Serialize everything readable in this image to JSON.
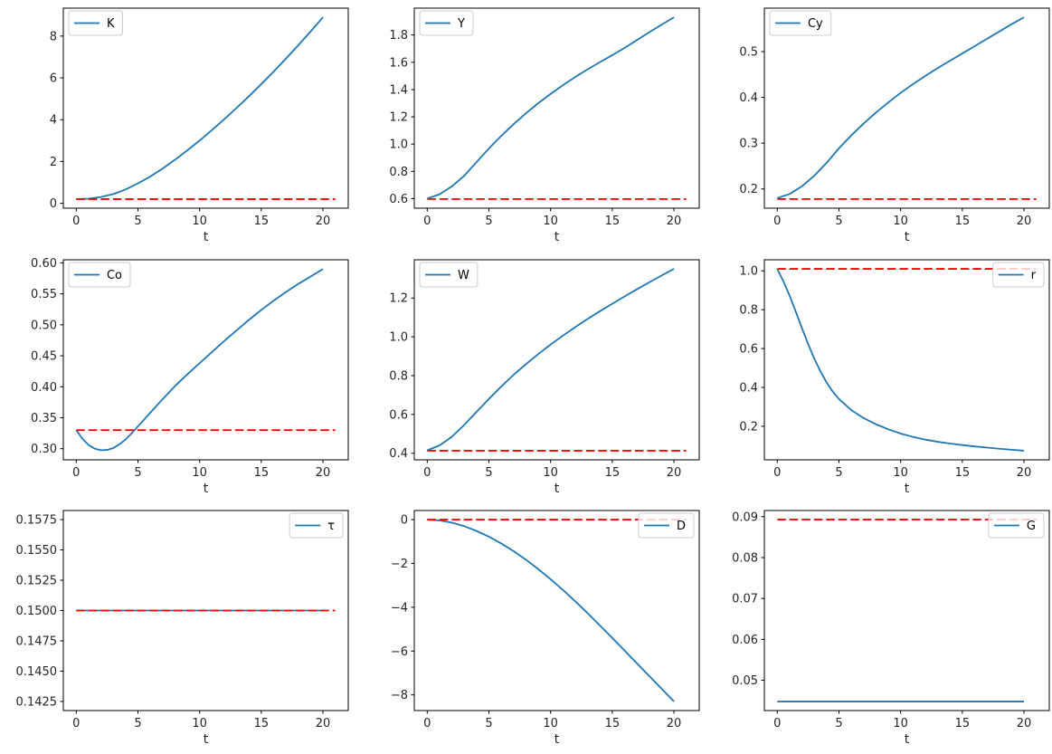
{
  "figure": {
    "background": "#ffffff",
    "description": "3x3 grid of time-path line plots, each variable plotted against t with a red dashed steady-state reference line"
  },
  "colors": {
    "series": "#1f77b4",
    "reference": "#ff0000",
    "axes": "#000000",
    "tick_text": "#262626",
    "legend_border": "#cccccc",
    "legend_fill": "#ffffff"
  },
  "chart_data": [
    {
      "id": "K",
      "type": "line",
      "xlabel": "t",
      "legend": {
        "label": "K",
        "loc": "upper-left"
      },
      "xlim": [
        -1.05,
        22.05
      ],
      "ylim": [
        -0.235,
        9.335
      ],
      "xticks": {
        "values": [
          0,
          5,
          10,
          15,
          20
        ],
        "labels": [
          "0",
          "5",
          "10",
          "15",
          "20"
        ]
      },
      "yticks": {
        "values": [
          0,
          2,
          4,
          6,
          8
        ],
        "labels": [
          "0",
          "2",
          "4",
          "6",
          "8"
        ]
      },
      "series": [
        {
          "name": "K",
          "color_key": "series",
          "style": "solid",
          "x": [
            0,
            1,
            2,
            3,
            4,
            5,
            6,
            7,
            8,
            9,
            10,
            11,
            12,
            13,
            14,
            15,
            16,
            17,
            18,
            19,
            20
          ],
          "y": [
            0.2,
            0.22,
            0.3,
            0.44,
            0.66,
            0.95,
            1.28,
            1.66,
            2.08,
            2.53,
            3.0,
            3.5,
            4.02,
            4.56,
            5.12,
            5.7,
            6.3,
            6.92,
            7.56,
            8.22,
            8.9
          ]
        },
        {
          "name": "steady_state",
          "color_key": "reference",
          "style": "dashed",
          "x": [
            0,
            21
          ],
          "y": [
            0.2,
            0.2
          ]
        }
      ]
    },
    {
      "id": "Y",
      "type": "line",
      "xlabel": "t",
      "legend": {
        "label": "Y",
        "loc": "upper-left"
      },
      "xlim": [
        -1.05,
        22.05
      ],
      "ylim": [
        0.53,
        1.997
      ],
      "xticks": {
        "values": [
          0,
          5,
          10,
          15,
          20
        ],
        "labels": [
          "0",
          "5",
          "10",
          "15",
          "20"
        ]
      },
      "yticks": {
        "values": [
          0.6,
          0.8,
          1.0,
          1.2,
          1.4,
          1.6,
          1.8
        ],
        "labels": [
          "0.6",
          "0.8",
          "1.0",
          "1.2",
          "1.4",
          "1.6",
          "1.8"
        ]
      },
      "series": [
        {
          "name": "Y",
          "color_key": "series",
          "style": "solid",
          "x": [
            0,
            1,
            2,
            3,
            4,
            5,
            6,
            7,
            8,
            9,
            10,
            11,
            12,
            13,
            14,
            15,
            16,
            17,
            18,
            19,
            20
          ],
          "y": [
            0.6,
            0.632,
            0.69,
            0.768,
            0.868,
            0.968,
            1.06,
            1.146,
            1.226,
            1.3,
            1.368,
            1.432,
            1.492,
            1.548,
            1.601,
            1.652,
            1.706,
            1.763,
            1.82,
            1.876,
            1.93
          ]
        },
        {
          "name": "steady_state",
          "color_key": "reference",
          "style": "dashed",
          "x": [
            0,
            21
          ],
          "y": [
            0.597,
            0.597
          ]
        }
      ]
    },
    {
      "id": "Cy",
      "type": "line",
      "xlabel": "t",
      "legend": {
        "label": "Cy",
        "loc": "upper-left"
      },
      "xlim": [
        -1.05,
        22.05
      ],
      "ylim": [
        0.158,
        0.595
      ],
      "xticks": {
        "values": [
          0,
          5,
          10,
          15,
          20
        ],
        "labels": [
          "0",
          "5",
          "10",
          "15",
          "20"
        ]
      },
      "yticks": {
        "values": [
          0.2,
          0.3,
          0.4,
          0.5
        ],
        "labels": [
          "0.2",
          "0.3",
          "0.4",
          "0.5"
        ]
      },
      "series": [
        {
          "name": "Cy",
          "color_key": "series",
          "style": "solid",
          "x": [
            0,
            1,
            2,
            3,
            4,
            5,
            6,
            7,
            8,
            9,
            10,
            11,
            12,
            13,
            14,
            15,
            16,
            17,
            18,
            19,
            20
          ],
          "y": [
            0.18,
            0.189,
            0.206,
            0.229,
            0.257,
            0.289,
            0.317,
            0.343,
            0.367,
            0.389,
            0.41,
            0.429,
            0.447,
            0.464,
            0.48,
            0.496,
            0.512,
            0.528,
            0.544,
            0.56,
            0.575
          ]
        },
        {
          "name": "steady_state",
          "color_key": "reference",
          "style": "dashed",
          "x": [
            0,
            21
          ],
          "y": [
            0.178,
            0.178
          ]
        }
      ]
    },
    {
      "id": "Co",
      "type": "line",
      "xlabel": "t",
      "legend": {
        "label": "Co",
        "loc": "upper-left"
      },
      "xlim": [
        -1.05,
        22.05
      ],
      "ylim": [
        0.282,
        0.605
      ],
      "xticks": {
        "values": [
          0,
          5,
          10,
          15,
          20
        ],
        "labels": [
          "0",
          "5",
          "10",
          "15",
          "20"
        ]
      },
      "yticks": {
        "values": [
          0.3,
          0.35,
          0.4,
          0.45,
          0.5,
          0.55,
          0.6
        ],
        "labels": [
          "0.30",
          "0.35",
          "0.40",
          "0.45",
          "0.50",
          "0.55",
          "0.60"
        ]
      },
      "series": [
        {
          "name": "Co",
          "color_key": "series",
          "style": "solid",
          "x": [
            0,
            0.5,
            1,
            1.5,
            2,
            2.5,
            3,
            3.5,
            4,
            4.5,
            5,
            6,
            7,
            8,
            9,
            10,
            11,
            12,
            13,
            14,
            15,
            16,
            17,
            18,
            19,
            20
          ],
          "y": [
            0.33,
            0.316,
            0.306,
            0.3,
            0.2975,
            0.298,
            0.301,
            0.307,
            0.315,
            0.325,
            0.336,
            0.358,
            0.38,
            0.401,
            0.42,
            0.438,
            0.456,
            0.474,
            0.491,
            0.508,
            0.524,
            0.539,
            0.553,
            0.566,
            0.578,
            0.59
          ]
        },
        {
          "name": "steady_state",
          "color_key": "reference",
          "style": "dashed",
          "x": [
            0,
            21
          ],
          "y": [
            0.33,
            0.33
          ]
        }
      ]
    },
    {
      "id": "W",
      "type": "line",
      "xlabel": "t",
      "legend": {
        "label": "W",
        "loc": "upper-left"
      },
      "xlim": [
        -1.05,
        22.05
      ],
      "ylim": [
        0.366,
        1.397
      ],
      "xticks": {
        "values": [
          0,
          5,
          10,
          15,
          20
        ],
        "labels": [
          "0",
          "5",
          "10",
          "15",
          "20"
        ]
      },
      "yticks": {
        "values": [
          0.4,
          0.6,
          0.8,
          1.0,
          1.2
        ],
        "labels": [
          "0.4",
          "0.6",
          "0.8",
          "1.0",
          "1.2"
        ]
      },
      "series": [
        {
          "name": "W",
          "color_key": "series",
          "style": "solid",
          "x": [
            0,
            1,
            2,
            3,
            4,
            5,
            6,
            7,
            8,
            9,
            10,
            11,
            12,
            13,
            14,
            15,
            16,
            17,
            18,
            19,
            20
          ],
          "y": [
            0.415,
            0.44,
            0.485,
            0.546,
            0.613,
            0.68,
            0.744,
            0.804,
            0.859,
            0.911,
            0.96,
            1.006,
            1.05,
            1.092,
            1.132,
            1.17,
            1.208,
            1.245,
            1.281,
            1.316,
            1.35
          ]
        },
        {
          "name": "steady_state",
          "color_key": "reference",
          "style": "dashed",
          "x": [
            0,
            21
          ],
          "y": [
            0.413,
            0.413
          ]
        }
      ]
    },
    {
      "id": "r",
      "type": "line",
      "xlabel": "t",
      "legend": {
        "label": "r",
        "loc": "upper-right"
      },
      "xlim": [
        -1.05,
        22.05
      ],
      "ylim": [
        0.027,
        1.057
      ],
      "xticks": {
        "values": [
          0,
          5,
          10,
          15,
          20
        ],
        "labels": [
          "0",
          "5",
          "10",
          "15",
          "20"
        ]
      },
      "yticks": {
        "values": [
          0.2,
          0.4,
          0.6,
          0.8,
          1.0
        ],
        "labels": [
          "0.2",
          "0.4",
          "0.6",
          "0.8",
          "1.0"
        ]
      },
      "series": [
        {
          "name": "r",
          "color_key": "series",
          "style": "solid",
          "x": [
            0,
            0.5,
            1,
            1.5,
            2,
            2.5,
            3,
            3.5,
            4,
            4.5,
            5,
            6,
            7,
            8,
            9,
            10,
            11,
            12,
            13,
            14,
            15,
            16,
            17,
            18,
            19,
            20
          ],
          "y": [
            1.01,
            0.945,
            0.872,
            0.79,
            0.705,
            0.623,
            0.548,
            0.482,
            0.425,
            0.378,
            0.34,
            0.283,
            0.242,
            0.21,
            0.184,
            0.162,
            0.145,
            0.131,
            0.12,
            0.111,
            0.103,
            0.096,
            0.09,
            0.084,
            0.079,
            0.074
          ]
        },
        {
          "name": "steady_state",
          "color_key": "reference",
          "style": "dashed",
          "x": [
            0,
            21
          ],
          "y": [
            1.01,
            1.01
          ]
        }
      ]
    },
    {
      "id": "tau",
      "type": "line",
      "xlabel": "t",
      "legend": {
        "label": "τ",
        "loc": "upper-right"
      },
      "xlim": [
        -1.05,
        22.05
      ],
      "ylim": [
        0.14175,
        0.15825
      ],
      "xticks": {
        "values": [
          0,
          5,
          10,
          15,
          20
        ],
        "labels": [
          "0",
          "5",
          "10",
          "15",
          "20"
        ]
      },
      "yticks": {
        "values": [
          0.1425,
          0.145,
          0.1475,
          0.15,
          0.1525,
          0.155,
          0.1575
        ],
        "labels": [
          "0.1425",
          "0.1450",
          "0.1475",
          "0.1500",
          "0.1525",
          "0.1550",
          "0.1575"
        ]
      },
      "series": [
        {
          "name": "tau",
          "color_key": "series",
          "style": "solid",
          "x": [
            0,
            20
          ],
          "y": [
            0.15,
            0.15
          ]
        },
        {
          "name": "steady_state",
          "color_key": "reference",
          "style": "dashed",
          "x": [
            0,
            21
          ],
          "y": [
            0.15,
            0.15
          ]
        }
      ]
    },
    {
      "id": "D",
      "type": "line",
      "xlabel": "t",
      "legend": {
        "label": "D",
        "loc": "upper-right"
      },
      "xlim": [
        -1.05,
        22.05
      ],
      "ylim": [
        -8.715,
        0.415
      ],
      "xticks": {
        "values": [
          0,
          5,
          10,
          15,
          20
        ],
        "labels": [
          "0",
          "5",
          "10",
          "15",
          "20"
        ]
      },
      "yticks": {
        "values": [
          0,
          -2,
          -4,
          -6,
          -8
        ],
        "labels": [
          "0",
          "−2",
          "−4",
          "−6",
          "−8"
        ]
      },
      "series": [
        {
          "name": "D",
          "color_key": "series",
          "style": "solid",
          "x": [
            0,
            1,
            2,
            3,
            4,
            5,
            6,
            7,
            8,
            9,
            10,
            11,
            12,
            13,
            14,
            15,
            16,
            17,
            18,
            19,
            20
          ],
          "y": [
            0.0,
            -0.04,
            -0.14,
            -0.3,
            -0.52,
            -0.78,
            -1.09,
            -1.44,
            -1.83,
            -2.26,
            -2.72,
            -3.21,
            -3.73,
            -4.27,
            -4.83,
            -5.4,
            -5.98,
            -6.56,
            -7.14,
            -7.72,
            -8.3
          ]
        },
        {
          "name": "steady_state",
          "color_key": "reference",
          "style": "dashed",
          "x": [
            0,
            21
          ],
          "y": [
            0.0,
            0.0
          ]
        }
      ]
    },
    {
      "id": "G",
      "type": "line",
      "xlabel": "t",
      "legend": {
        "label": "G",
        "loc": "upper-right"
      },
      "xlim": [
        -1.05,
        22.05
      ],
      "ylim": [
        0.0426,
        0.0915
      ],
      "xticks": {
        "values": [
          0,
          5,
          10,
          15,
          20
        ],
        "labels": [
          "0",
          "5",
          "10",
          "15",
          "20"
        ]
      },
      "yticks": {
        "values": [
          0.05,
          0.06,
          0.07,
          0.08,
          0.09
        ],
        "labels": [
          "0.05",
          "0.06",
          "0.07",
          "0.08",
          "0.09"
        ]
      },
      "series": [
        {
          "name": "G",
          "color_key": "series",
          "style": "solid",
          "x": [
            0,
            20
          ],
          "y": [
            0.0448,
            0.0448
          ]
        },
        {
          "name": "steady_state",
          "color_key": "reference",
          "style": "dashed",
          "x": [
            0,
            21
          ],
          "y": [
            0.0893,
            0.0893
          ]
        }
      ]
    }
  ]
}
